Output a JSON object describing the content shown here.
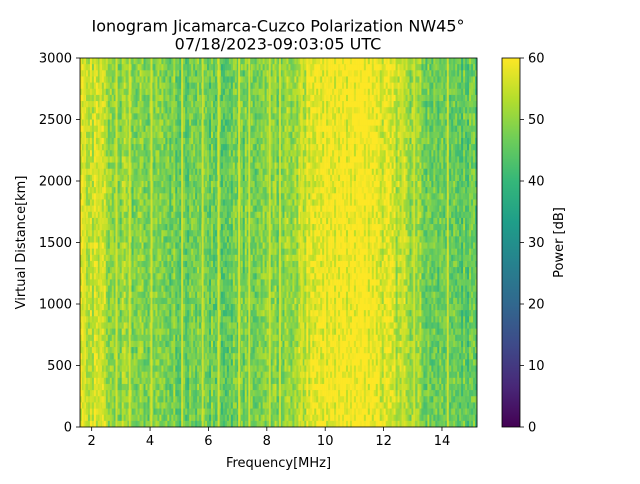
{
  "chart_data": {
    "type": "heatmap",
    "title": "Ionogram Jicamarca-Cuzco Polarization NW45°",
    "subtitle": "07/18/2023-09:03:05 UTC",
    "xlabel": "Frequency[MHz]",
    "ylabel": "Virtual Distance[km]",
    "xlim": [
      1.6,
      15.2
    ],
    "ylim": [
      0,
      3000
    ],
    "xticks": [
      2,
      4,
      6,
      8,
      10,
      12,
      14
    ],
    "yticks": [
      0,
      500,
      1000,
      1500,
      2000,
      2500,
      3000
    ],
    "colorbar": {
      "label": "Power [dB]",
      "min": 0,
      "max": 60,
      "ticks": [
        0,
        10,
        20,
        30,
        40,
        50,
        60
      ],
      "colormap": "viridis"
    },
    "frequency_profile_db": {
      "frequency_mhz": [
        1.6,
        2.0,
        2.5,
        3.0,
        3.5,
        4.0,
        5.0,
        6.0,
        7.0,
        8.0,
        9.0,
        9.3,
        9.6,
        10.0,
        10.5,
        11.0,
        11.5,
        11.9,
        12.5,
        13.0,
        14.0,
        15.2
      ],
      "power_db": [
        55,
        56,
        52,
        50,
        49,
        48,
        47,
        46,
        47,
        48,
        51,
        55,
        58,
        60,
        60,
        60,
        60,
        58,
        54,
        50,
        46,
        45
      ]
    },
    "bright_lines_mhz": [
      1.75,
      2.3,
      2.85,
      3.3,
      4.05,
      5.1,
      5.8,
      6.35,
      7.05,
      7.4,
      8.1,
      8.45,
      9.2,
      12.65,
      13.05,
      14.2
    ]
  }
}
